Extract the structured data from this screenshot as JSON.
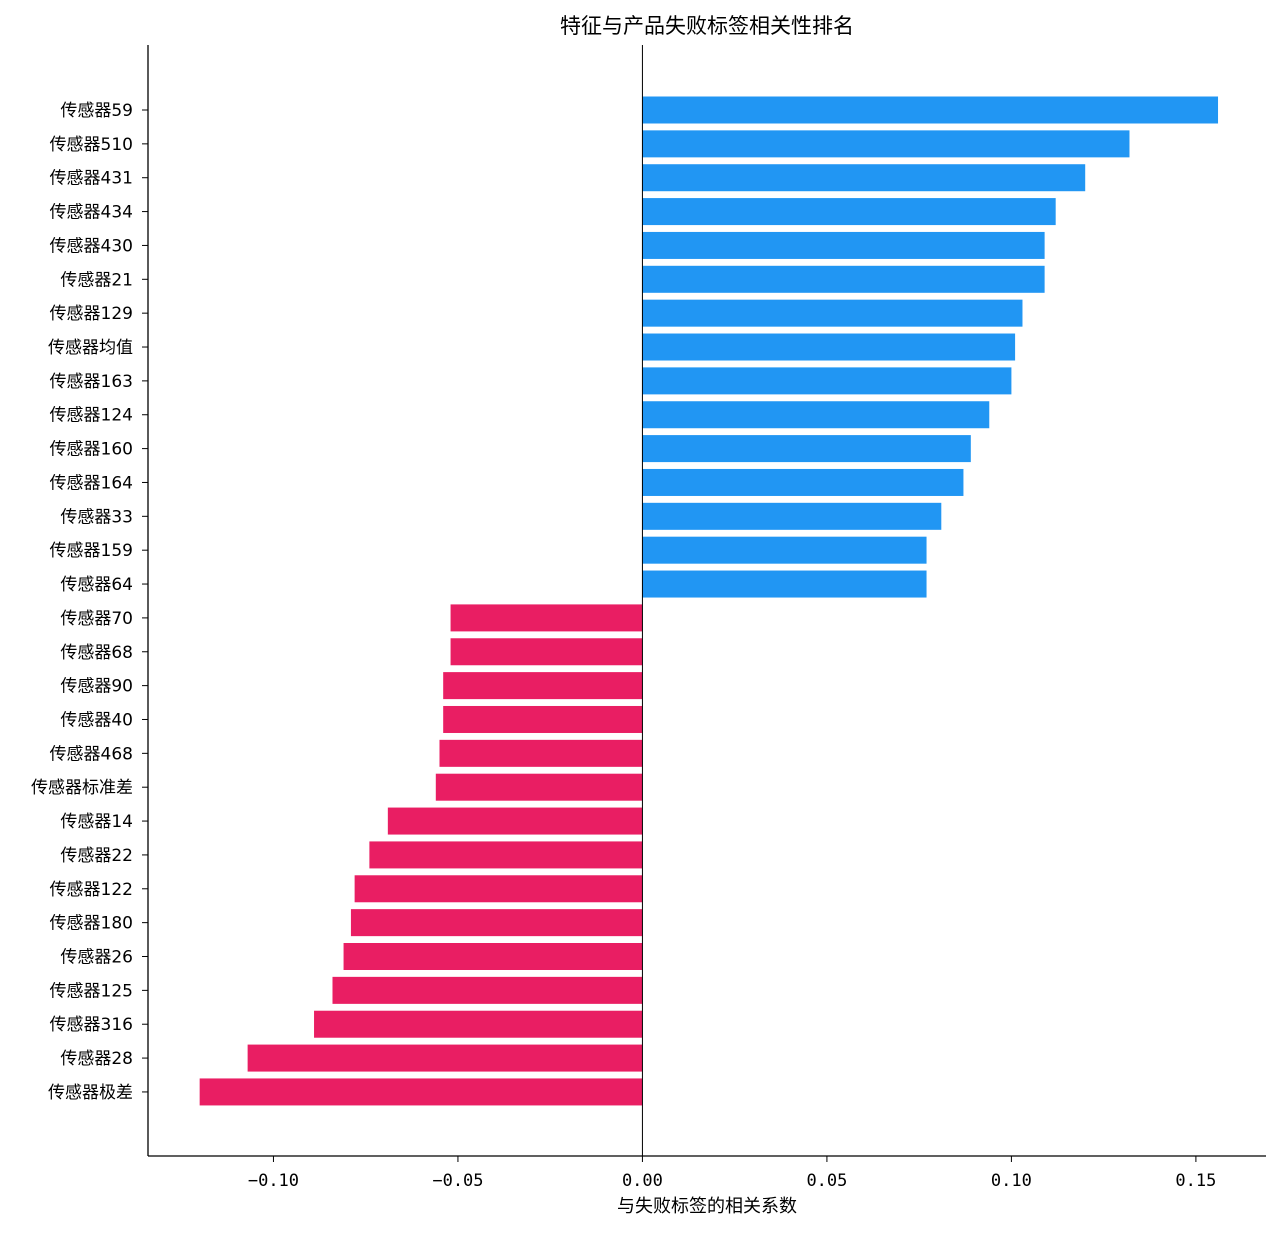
{
  "chart_data": {
    "type": "bar",
    "orientation": "horizontal",
    "title": "特征与产品失败标签相关性排名",
    "xlabel": "与失败标签的相关系数",
    "ylabel": "",
    "xlim": [
      -0.134,
      0.169
    ],
    "xticks": [
      -0.1,
      -0.05,
      0.0,
      0.05,
      0.1,
      0.15
    ],
    "xtick_labels": [
      "−0.10",
      "−0.05",
      "0.00",
      "0.05",
      "0.10",
      "0.15"
    ],
    "grid": false,
    "legend": null,
    "colors": {
      "positive": "#2196f3",
      "negative": "#e91e63",
      "axis": "#000000",
      "zero_line": "#000000"
    },
    "categories": [
      "传感器59",
      "传感器510",
      "传感器431",
      "传感器434",
      "传感器430",
      "传感器21",
      "传感器129",
      "传感器均值",
      "传感器163",
      "传感器124",
      "传感器160",
      "传感器164",
      "传感器33",
      "传感器159",
      "传感器64",
      "传感器70",
      "传感器68",
      "传感器90",
      "传感器40",
      "传感器468",
      "传感器标准差",
      "传感器14",
      "传感器22",
      "传感器122",
      "传感器180",
      "传感器26",
      "传感器125",
      "传感器316",
      "传感器28",
      "传感器极差"
    ],
    "values": [
      0.156,
      0.132,
      0.12,
      0.112,
      0.109,
      0.109,
      0.103,
      0.101,
      0.1,
      0.094,
      0.089,
      0.087,
      0.081,
      0.077,
      0.077,
      -0.052,
      -0.052,
      -0.054,
      -0.054,
      -0.055,
      -0.056,
      -0.069,
      -0.074,
      -0.078,
      -0.079,
      -0.081,
      -0.084,
      -0.089,
      -0.107,
      -0.12
    ]
  }
}
